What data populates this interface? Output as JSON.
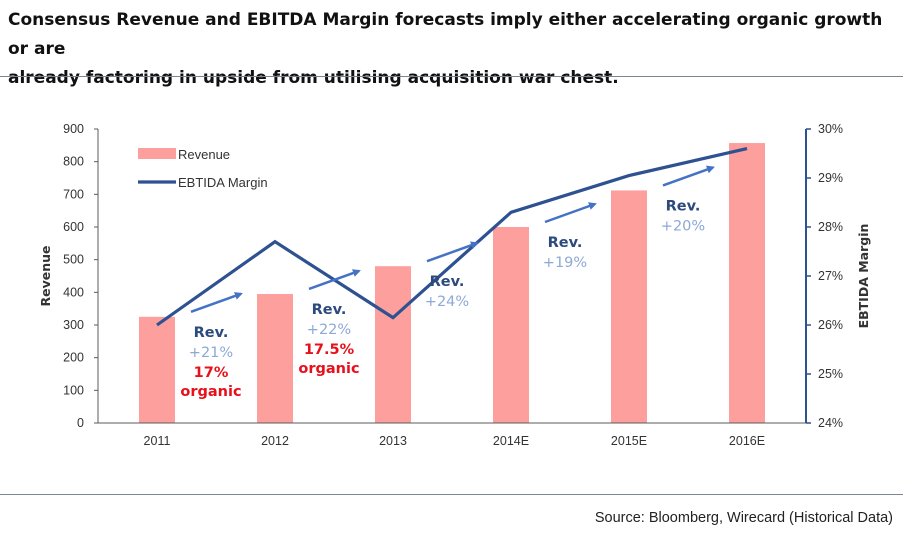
{
  "title_line1": "Consensus Revenue and EBITDA Margin forecasts imply either accelerating organic growth or are",
  "title_line2": "already factoring in upside from utilising acquisition war chest.",
  "source": "Source: Bloomberg, Wirecard (Historical Data)",
  "colors": {
    "bar": "#fd9f9d",
    "line": "#2d5191",
    "arrow": "#4472c4",
    "rule": "#7b8594"
  },
  "chart_data": {
    "type": "bar",
    "categories": [
      "2011",
      "2012",
      "2013",
      "2014E",
      "2015E",
      "2016E"
    ],
    "series": [
      {
        "name": "Revenue",
        "type": "bar",
        "axis": "left",
        "values": [
          325,
          395,
          480,
          600,
          712,
          857
        ]
      },
      {
        "name": "EBTIDA Margin",
        "type": "line",
        "axis": "right",
        "values": [
          26.0,
          27.7,
          26.15,
          28.3,
          29.05,
          29.6
        ]
      }
    ],
    "ylabel": "Revenue",
    "y2label": "EBTIDA  Margin",
    "ylim": [
      0,
      900
    ],
    "yticks": [
      "0",
      "100",
      "200",
      "300",
      "400",
      "500",
      "600",
      "700",
      "800",
      "900"
    ],
    "y2lim": [
      24,
      30
    ],
    "y2ticks": [
      "24%",
      "25%",
      "26%",
      "27%",
      "28%",
      "29%",
      "30%"
    ],
    "legend_position": "top-left",
    "grid": false,
    "annotations": [
      {
        "rev": "Rev.",
        "pct": "+21%",
        "organic": [
          "17%",
          "organic"
        ]
      },
      {
        "rev": "Rev.",
        "pct": "+22%",
        "organic": [
          "17.5%",
          "organic"
        ]
      },
      {
        "rev": "Rev.",
        "pct": "+24%",
        "organic": []
      },
      {
        "rev": "Rev.",
        "pct": "+19%",
        "organic": []
      },
      {
        "rev": "Rev.",
        "pct": "+20%",
        "organic": []
      }
    ]
  }
}
